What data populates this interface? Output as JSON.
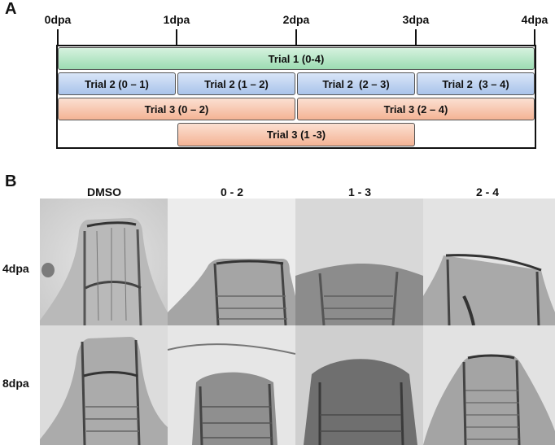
{
  "panel_a": {
    "label": "A",
    "ticks": [
      "0dpa",
      "1dpa",
      "2dpa",
      "3dpa",
      "4dpa"
    ],
    "trial1": "Trial 1 (0-4)",
    "trial2": [
      "Trial 2 (0 – 1)",
      "Trial 2 (1 – 2)",
      "Trial 2  (2 – 3)",
      "Trial 2  (3 – 4)"
    ],
    "trial3_row1": [
      "Trial 3 (0 – 2)",
      "Trial 3 (2 – 4)"
    ],
    "trial3_row2": "Trial 3 (1 -3)",
    "colors": {
      "green": "#9cdcb2",
      "blue": "#a9c3ea",
      "orange": "#f4b394"
    }
  },
  "panel_b": {
    "label": "B",
    "columns": [
      "DMSO",
      "0 - 2",
      "1 - 3",
      "2 - 4"
    ],
    "rows": [
      "4dpa",
      "8dpa"
    ]
  }
}
